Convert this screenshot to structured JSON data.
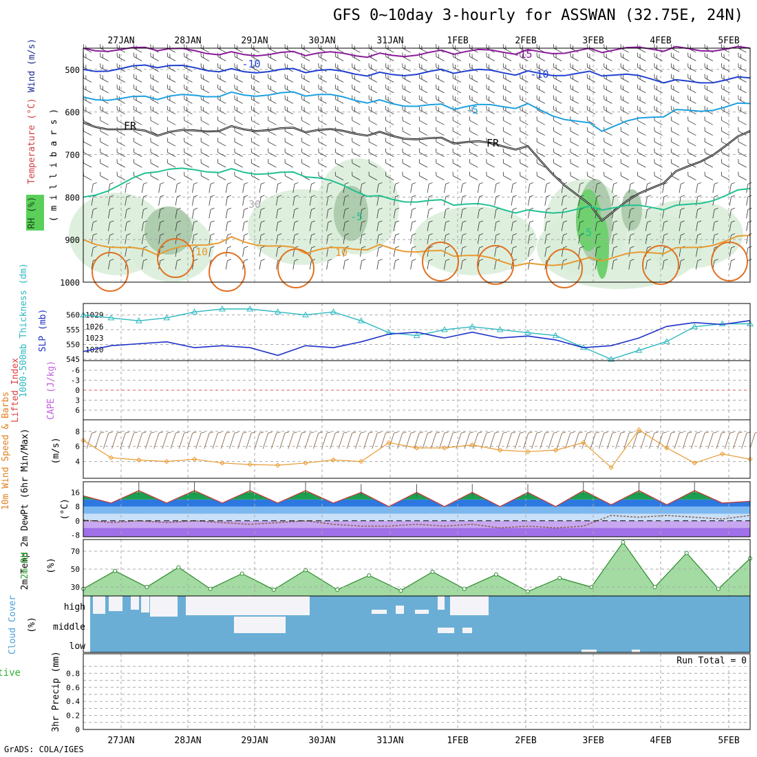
{
  "title": "GFS 0~10day 3-hourly for ASSWAN (32.75E, 24N)",
  "credit": "GrADS: COLA/IGES",
  "colors": {
    "frame": "#000000",
    "grid": "#aaaaaa",
    "thickness": "#2cb8c0",
    "slp": "#1c30c8",
    "wind10": "#e89a30",
    "barb": "#8a6a50",
    "temp_line": "#c04040",
    "dewpt": "#8a5a40",
    "rh_fill": "#7ccc7c",
    "rh_line": "#2a8a2a",
    "cloud_bg": "#6aaed6",
    "cloud_clear": "#f4f4f8",
    "li_zero": "#e05050"
  },
  "chart_data": [
    {
      "type": "contour",
      "name": "vertical-profile",
      "ylabel_parts": [
        "RH (%)",
        "Temperature (°C)",
        "Wind (m/s)"
      ],
      "yaxis_label": "( m i l l i b a r s )",
      "y_ticks": [
        500,
        600,
        700,
        800,
        900,
        1000
      ],
      "ylim": [
        450,
        1000
      ],
      "x_ticks": [
        "27JAN",
        "28JAN",
        "29JAN",
        "30JAN",
        "31JAN",
        "1FEB",
        "2FEB",
        "3FEB",
        "4FEB",
        "5FEB"
      ],
      "contour_labels": [
        "-15",
        "-10",
        "-10",
        "-5",
        "FR",
        "FR",
        "-5",
        "-5",
        "10",
        "10",
        "30"
      ],
      "isotherms": [
        {
          "name": "-15",
          "color": "#8a1a9a",
          "levels": [
            450,
            455,
            460,
            465,
            465,
            460,
            458,
            455,
            452,
            450
          ]
        },
        {
          "name": "-10",
          "color": "#2040d0",
          "levels": [
            500,
            495,
            500,
            505,
            510,
            505,
            508,
            510,
            530,
            520
          ]
        },
        {
          "name": "-5",
          "color": "#1ca0e0",
          "levels": [
            565,
            570,
            555,
            560,
            575,
            590,
            585,
            640,
            600,
            580
          ]
        },
        {
          "name": "FR",
          "color": "#000000",
          "levels": [
            625,
            655,
            635,
            645,
            650,
            670,
            685,
            850,
            745,
            645
          ]
        },
        {
          "name": "5",
          "color": "#20c090",
          "levels": [
            800,
            740,
            735,
            750,
            800,
            815,
            835,
            825,
            825,
            780
          ]
        },
        {
          "name": "10",
          "color": "#e89a30",
          "levels": [
            900,
            935,
            895,
            930,
            915,
            935,
            960,
            945,
            925,
            890
          ]
        }
      ]
    },
    {
      "type": "line",
      "name": "thickness-slp",
      "ylabel": "1000-500mb Thickness (dm)",
      "ylabel2": "SLP (mb)",
      "y_ticks_left": [
        545,
        550,
        555,
        560
      ],
      "y_ticks_right": [
        1020,
        1023,
        1026,
        1029
      ],
      "series": [
        {
          "name": "Thickness",
          "values": [
            560,
            559,
            558,
            559,
            561,
            562,
            562,
            561,
            560,
            561,
            558,
            554,
            553,
            555,
            556,
            555,
            554,
            553,
            549,
            545,
            548,
            551,
            556,
            557,
            557
          ]
        },
        {
          "name": "SLP",
          "values": [
            1019.5,
            1021,
            1021.5,
            1022,
            1020.5,
            1021,
            1020.5,
            1018.5,
            1021,
            1020.5,
            1022,
            1024,
            1024.5,
            1023,
            1024.5,
            1023,
            1023.5,
            1022.5,
            1020.5,
            1021,
            1023,
            1026,
            1027,
            1026.5,
            1027.5
          ]
        }
      ]
    },
    {
      "type": "line",
      "name": "lifted-index-cape",
      "ylabel": "Lifted Index",
      "ylabel2": "CAPE (J/kg)",
      "y_ticks": [
        "-6",
        "-3",
        "0",
        "3",
        "6"
      ],
      "values": []
    },
    {
      "type": "line",
      "name": "wind10m",
      "ylabel": "10m Wind Speed & Barbs",
      "units": "(m/s)",
      "y_ticks": [
        4,
        6,
        8
      ],
      "values": [
        6.8,
        4.5,
        4.2,
        4.0,
        4.3,
        3.8,
        3.6,
        3.5,
        3.8,
        4.2,
        4.0,
        6.5,
        5.8,
        5.8,
        6.2,
        5.5,
        5.3,
        5.5,
        6.5,
        3.2,
        8.2,
        5.8,
        3.8,
        5.0,
        4.3
      ]
    },
    {
      "type": "area",
      "name": "temp-dewpt",
      "ylabel": "2m Temp 2m DewPt (6hr Min/Max)",
      "units": "(°C)",
      "y_ticks": [
        -8,
        0,
        8,
        16
      ],
      "temp": [
        14,
        10,
        17,
        10,
        17,
        10,
        17,
        10,
        17,
        10,
        16,
        8,
        16,
        8,
        16,
        8,
        16,
        8,
        17,
        9,
        17,
        9,
        17,
        10,
        11
      ],
      "dewpt": [
        0.5,
        -1,
        0,
        -1,
        0,
        -1,
        -2,
        -1,
        0,
        -2,
        -3,
        -3,
        -2,
        -3,
        -2,
        -4,
        -3,
        -4,
        -3,
        3,
        2,
        3,
        2,
        1,
        3
      ]
    },
    {
      "type": "area",
      "name": "rh2m",
      "ylabel": "2m RH",
      "units": "(%)",
      "y_ticks": [
        30,
        50,
        70
      ],
      "values": [
        28,
        48,
        30,
        52,
        28,
        45,
        27,
        49,
        27,
        43,
        26,
        47,
        28,
        44,
        25,
        40,
        30,
        80,
        30,
        68,
        28,
        62
      ]
    },
    {
      "type": "heatmap",
      "name": "cloud-cover",
      "ylabel": "Cloud Cover",
      "units": "(%)",
      "rows": [
        "high",
        "middle",
        "low"
      ]
    },
    {
      "type": "bar",
      "name": "precip",
      "ylabel": "Total / Rain Convective",
      "ylabel2": "3hr Precip (mm)",
      "y_ticks": [
        "0",
        "0.2",
        "0.4",
        "0.6",
        "0.8"
      ],
      "ylim": [
        0,
        1
      ],
      "run_total": "Run Total = 0",
      "values": []
    }
  ]
}
